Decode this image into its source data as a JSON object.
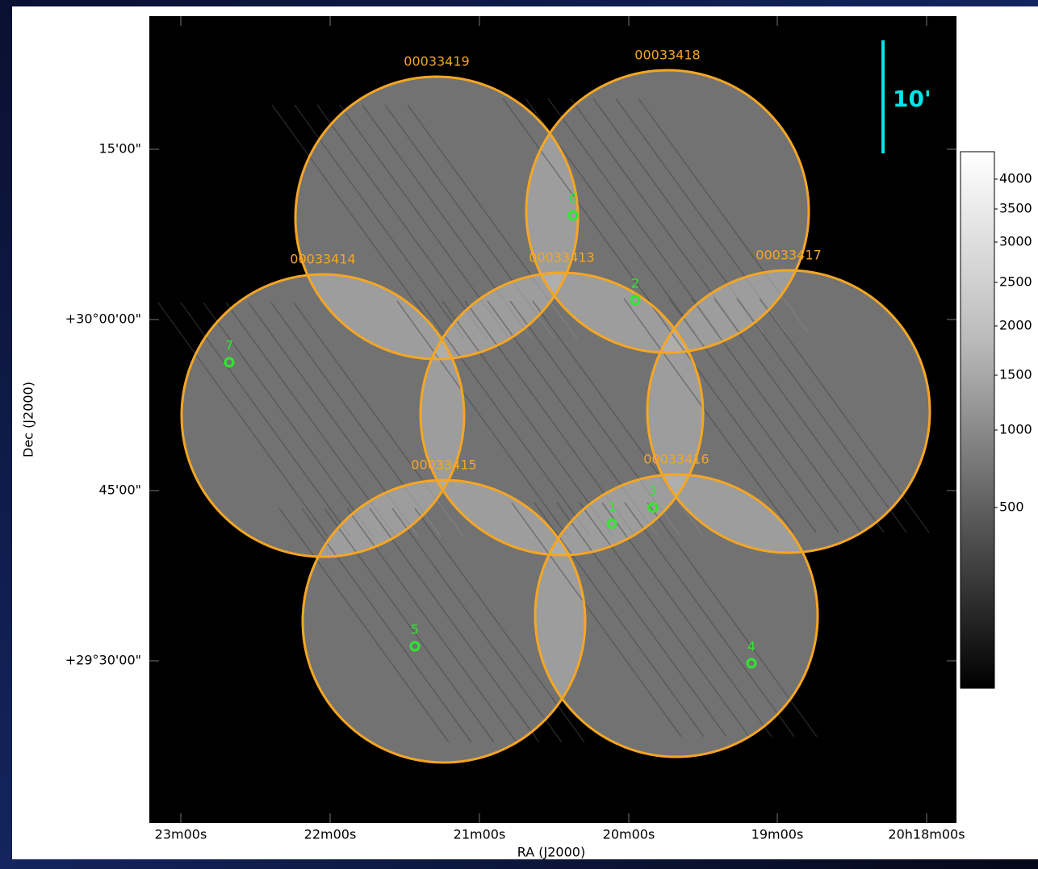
{
  "axes": {
    "x_label": "RA (J2000)",
    "y_label": "Dec (J2000)",
    "x_ticks": [
      "23m00s",
      "22m00s",
      "21m00s",
      "20m00s",
      "19m00s",
      "20h18m00s"
    ],
    "y_ticks": [
      "15'00\"",
      "+30°00'00\"",
      "45'00\"",
      "+29°30'00\""
    ]
  },
  "fields": [
    {
      "label": "00033419"
    },
    {
      "label": "00033418"
    },
    {
      "label": "00033414"
    },
    {
      "label": "00033413"
    },
    {
      "label": "00033417"
    },
    {
      "label": "00033415"
    },
    {
      "label": "00033416"
    }
  ],
  "sources": [
    "1",
    "2",
    "3",
    "4",
    "5",
    "6",
    "7"
  ],
  "colorbar": {
    "ticks": [
      4000,
      3500,
      3000,
      2500,
      2000,
      1500,
      1000,
      500
    ]
  },
  "scale_bar": "10'"
}
